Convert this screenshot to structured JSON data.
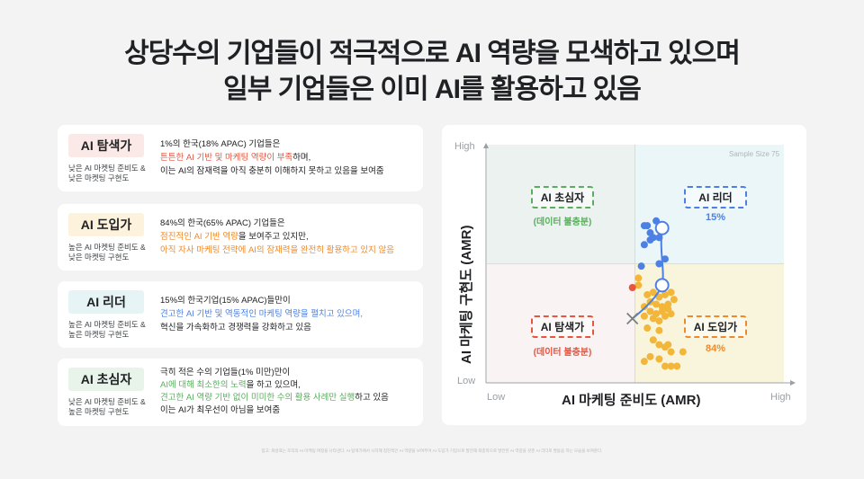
{
  "title": {
    "line1": "상당수의 기업들이 적극적으로 AI 역량을 모색하고 있으며",
    "line2": "일부 기업들은 이미 AI를 활용하고 있음"
  },
  "cards": [
    {
      "badge": "AI 탐색가",
      "badge_color": "#fbe9e7",
      "subtitle": "낮은 AI 마켓팅 준비도 &\n낮은 마켓팅 구현도",
      "lines": [
        {
          "pre": "1%의 한국(18% APAC) 기업들은",
          "hl": "",
          "post": ""
        },
        {
          "pre": "",
          "hl": "튼튼한 AI 기반 및 마케팅 역량이 부족",
          "post": "하며,"
        },
        {
          "pre": "이는 AI의 잠재력을 아직 충분히 이해하지 못하고 있음을 보여줌",
          "hl": "",
          "post": ""
        }
      ]
    },
    {
      "badge": "AI 도입가",
      "badge_color": "#fdf3dc",
      "subtitle": "높은 AI 마켓팅 준비도 &\n낮은 마켓팅 구현도",
      "lines": [
        {
          "pre": "84%의 한국(65% APAC) 기업들은",
          "hl": "",
          "post": ""
        },
        {
          "pre": "",
          "hl": "점진적인 AI 기반 역량",
          "post": "을 보여주고 있지만,"
        },
        {
          "pre": "",
          "hl": "아직 자사 마케팅 전략에 AI의 잠재력을 완전히 활용하고 있지 않음",
          "post": ""
        }
      ]
    },
    {
      "badge": "AI 리더",
      "badge_color": "#e6f4f6",
      "subtitle": "높은 AI 마켓팅 준비도 &\n높은 마켓팅 구현도",
      "lines": [
        {
          "pre": "15%의 한국기업(15% APAC)들만이",
          "hl": "",
          "post": ""
        },
        {
          "pre": "",
          "hl": "견고한 AI 기반 및 역동적인 마케팅 역량을 펼치고 있으며,",
          "post": ""
        },
        {
          "pre": "혁신을 가속화하고 경쟁력을 강화하고 있음",
          "hl": "",
          "post": ""
        }
      ]
    },
    {
      "badge": "AI 초심자",
      "badge_color": "#e8f3ea",
      "subtitle": "낮은 AI 마켓팅 준비도 &\n높은 마켓팅 구현도",
      "lines": [
        {
          "pre": "극히 적은 수의 기업들(1% 미만)만이",
          "hl": "",
          "post": ""
        },
        {
          "pre": "",
          "hl": "AI에 대해 최소한의 노력",
          "post": "을 하고 있으며,"
        },
        {
          "pre": "",
          "hl": "견고한 AI 역량 기반 없이 미미한 수의 활용 사례만 실행",
          "post": "하고 있음"
        },
        {
          "pre": "이는 AI가 최우선이 아님을 보여줌",
          "hl": "",
          "post": ""
        }
      ]
    }
  ],
  "chart": {
    "sample_size": "Sample Size 75",
    "y_high": "High",
    "y_low": "Low",
    "x_low": "Low",
    "x_high": "High",
    "y_label": "AI 마케팅 구현도 (AMR)",
    "x_label": "AI 마케팅 준비도 (AMR)",
    "quadrants": {
      "beginner": {
        "label": "AI 초심자",
        "note": "(데이터 불충분)"
      },
      "leader": {
        "label": "AI 리더",
        "note": "15%"
      },
      "explorer": {
        "label": "AI 탐색가",
        "note": "(데이터 불충분)"
      },
      "adopter": {
        "label": "AI 도입가",
        "note": "84%"
      }
    }
  },
  "colors": {
    "explorer": "#e8543f",
    "adopter": "#ee8a2b",
    "leader": "#4d80e4",
    "beginner": "#5aae5e",
    "adopter_dot": "#f2b63a"
  },
  "chart_data": {
    "type": "scatter",
    "title": "",
    "xlabel": "AI 마케팅 준비도 (AMR)",
    "ylabel": "AI 마케팅 구현도 (AMR)",
    "x_ticks": [
      "Low",
      "High"
    ],
    "y_ticks": [
      "Low",
      "High"
    ],
    "xlim": [
      0,
      1
    ],
    "ylim": [
      0,
      1
    ],
    "annotations": [
      "Sample Size 75",
      "AI 초심자 (데이터 불충분)",
      "AI 리더 15%",
      "AI 탐색가 (데이터 불충분)",
      "AI 도입가 84%"
    ],
    "series": [
      {
        "name": "AI 리더",
        "color": "#4d80e4",
        "share": "15%",
        "points": [
          [
            0.54,
            0.66
          ],
          [
            0.57,
            0.68
          ],
          [
            0.56,
            0.61
          ],
          [
            0.55,
            0.6
          ],
          [
            0.58,
            0.61
          ],
          [
            0.55,
            0.63
          ],
          [
            0.53,
            0.58
          ],
          [
            0.6,
            0.52
          ],
          [
            0.52,
            0.49
          ],
          [
            0.58,
            0.5
          ],
          [
            0.53,
            0.66
          ]
        ]
      },
      {
        "name": "AI 도입가",
        "color": "#f2b63a",
        "share": "84%",
        "points": [
          [
            0.51,
            0.44
          ],
          [
            0.51,
            0.41
          ],
          [
            0.54,
            0.37
          ],
          [
            0.56,
            0.38
          ],
          [
            0.58,
            0.36
          ],
          [
            0.6,
            0.37
          ],
          [
            0.62,
            0.38
          ],
          [
            0.55,
            0.34
          ],
          [
            0.57,
            0.33
          ],
          [
            0.59,
            0.32
          ],
          [
            0.61,
            0.33
          ],
          [
            0.63,
            0.35
          ],
          [
            0.53,
            0.32
          ],
          [
            0.55,
            0.3
          ],
          [
            0.57,
            0.29
          ],
          [
            0.59,
            0.3
          ],
          [
            0.61,
            0.31
          ],
          [
            0.56,
            0.27
          ],
          [
            0.58,
            0.26
          ],
          [
            0.53,
            0.28
          ],
          [
            0.6,
            0.28
          ],
          [
            0.62,
            0.29
          ],
          [
            0.54,
            0.23
          ],
          [
            0.58,
            0.22
          ],
          [
            0.56,
            0.18
          ],
          [
            0.58,
            0.16
          ],
          [
            0.6,
            0.15
          ],
          [
            0.62,
            0.13
          ],
          [
            0.55,
            0.11
          ],
          [
            0.58,
            0.1
          ],
          [
            0.6,
            0.07
          ],
          [
            0.62,
            0.07
          ],
          [
            0.64,
            0.07
          ],
          [
            0.53,
            0.09
          ],
          [
            0.61,
            0.16
          ],
          [
            0.66,
            0.13
          ]
        ]
      },
      {
        "name": "AI 탐색가",
        "color": "#e8543f",
        "share": "",
        "points": [
          [
            0.49,
            0.4
          ]
        ]
      }
    ],
    "trajectory": {
      "start": [
        0.49,
        0.27
      ],
      "waypoints": [
        [
          0.59,
          0.41
        ],
        [
          0.59,
          0.65
        ]
      ],
      "end_marker": "arrow-path"
    },
    "quadrant_split": {
      "x": 0.5,
      "y": 0.5
    },
    "legend_position": "none",
    "grid": false
  },
  "footnote": "참고: 화살표는 조직의 AI 마케팅 여정을 나타낸다. AI 탐색가에서 시작해 점진적인 AI 역량을 보여주며 AI 도입가 기업으로 발전해 최종적으로 발전된 AI 역량을 갖춘 AI 리더로 발돋움 하는 모습을 보여준다."
}
